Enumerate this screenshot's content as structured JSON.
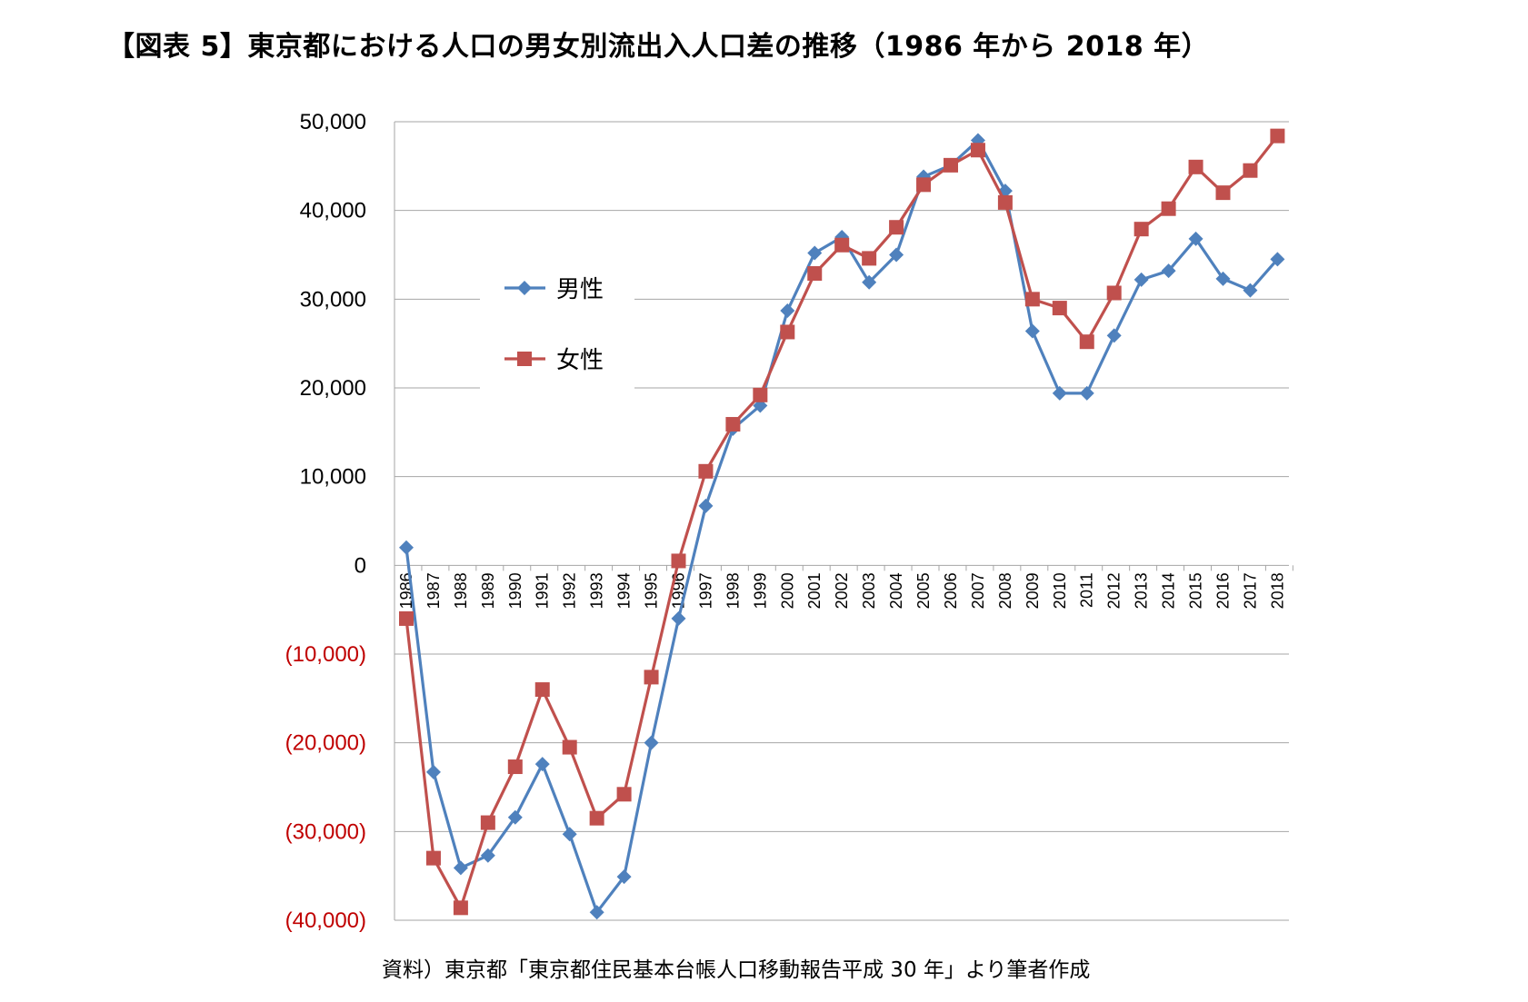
{
  "title": "【図表 5】東京都における人口の男女別流出入人口差の推移（1986 年から 2018 年）",
  "source": "資料）東京都「東京都住民基本台帳人口移動報告平成 30 年」より筆者作成",
  "colors": {
    "male": "#4F81BD",
    "female": "#C0504D",
    "negative_tick": "#C00000",
    "grid": "#A6A6A6"
  },
  "chart_data": {
    "type": "line",
    "title": "",
    "xlabel": "",
    "ylabel": "",
    "ylim": [
      -40000,
      50000
    ],
    "grid": true,
    "legend_position": "left-upper inside plot",
    "yticks": [
      {
        "value": 50000,
        "label": "50,000"
      },
      {
        "value": 40000,
        "label": "40,000"
      },
      {
        "value": 30000,
        "label": "30,000"
      },
      {
        "value": 20000,
        "label": "20,000"
      },
      {
        "value": 10000,
        "label": "10,000"
      },
      {
        "value": 0,
        "label": "0"
      },
      {
        "value": -10000,
        "label": "(10,000)"
      },
      {
        "value": -20000,
        "label": "(20,000)"
      },
      {
        "value": -30000,
        "label": "(30,000)"
      },
      {
        "value": -40000,
        "label": "(40,000)"
      }
    ],
    "categories": [
      "1986",
      "1987",
      "1988",
      "1989",
      "1990",
      "1991",
      "1992",
      "1993",
      "1994",
      "1995",
      "1996",
      "1997",
      "1998",
      "1999",
      "2000",
      "2001",
      "2002",
      "2003",
      "2004",
      "2005",
      "2006",
      "2007",
      "2008",
      "2009",
      "2010",
      "2011",
      "2012",
      "2013",
      "2014",
      "2015",
      "2016",
      "2017",
      "2018"
    ],
    "series": [
      {
        "name": "男性",
        "marker": "diamond",
        "values": [
          2000,
          -23300,
          -34100,
          -32700,
          -28400,
          -22400,
          -30300,
          -39100,
          -35100,
          -20000,
          -6000,
          6700,
          15400,
          18000,
          28700,
          35200,
          37000,
          31900,
          35000,
          43800,
          45100,
          47900,
          42200,
          26400,
          19400,
          19400,
          25900,
          32200,
          33200,
          36800,
          32300,
          31000,
          34500
        ]
      },
      {
        "name": "女性",
        "marker": "square",
        "values": [
          -6000,
          -33000,
          -38600,
          -29000,
          -22700,
          -14000,
          -20500,
          -28500,
          -25800,
          -12600,
          500,
          10600,
          15900,
          19200,
          26300,
          32900,
          36100,
          34600,
          38100,
          42900,
          45100,
          46800,
          40900,
          30000,
          29000,
          25200,
          30700,
          37900,
          40200,
          44900,
          42000,
          44500,
          48400
        ]
      }
    ]
  }
}
